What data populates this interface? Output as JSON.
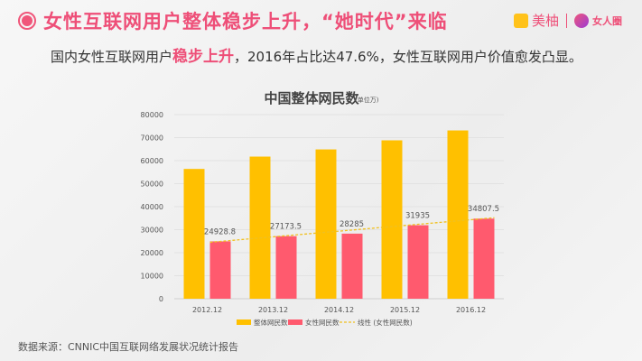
{
  "header": {
    "title": "女性互联网用户整体稳步上升，“她时代”来临",
    "brand1": "美柚",
    "brand2": "女人圈"
  },
  "subtitle": {
    "before": "国内女性互联网用户",
    "highlight": "稳步上升",
    "after": "，2016年占比达47.6%，女性互联网用户价值愈发凸显。"
  },
  "source": "数据来源：CNNIC中国互联网络发展状况统计报告",
  "colors": {
    "accent": "#ee4f78",
    "total": "#ffc000",
    "female": "#ff5a6e",
    "trend": "#f0c020"
  },
  "chart_data": {
    "type": "bar",
    "title": "中国整体网民数",
    "unit": "(单位万)",
    "categories": [
      "2012.12",
      "2013.12",
      "2014.12",
      "2015.12",
      "2016.12"
    ],
    "series": [
      {
        "name": "整体网民数",
        "values": [
          56400,
          61758,
          64875,
          68826,
          73125
        ]
      },
      {
        "name": "女性网民数",
        "values": [
          24928.8,
          27173.5,
          28285,
          31935,
          34807.5
        ],
        "labels": [
          "24928.8",
          "27173.5",
          "28285",
          "31935",
          "34807.5"
        ]
      }
    ],
    "trendline": {
      "name": "线性 (女性网民数)",
      "type": "linear",
      "style": "dashed"
    },
    "yticks": [
      "0",
      "10000",
      "20000",
      "30000",
      "40000",
      "50000",
      "60000",
      "70000",
      "80000"
    ],
    "ylim": [
      0,
      80000
    ],
    "grid": true,
    "legend": "bottom"
  }
}
